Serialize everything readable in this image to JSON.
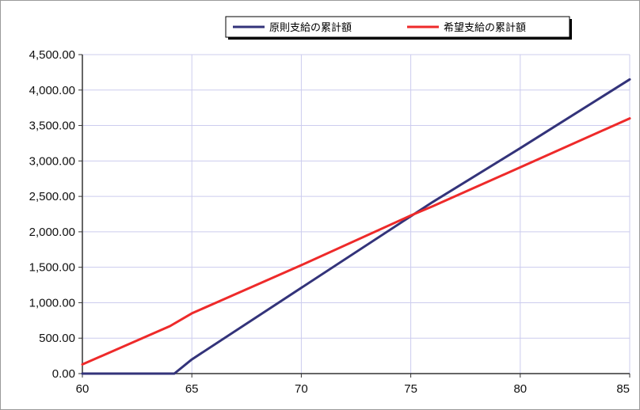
{
  "chart_data": {
    "type": "line",
    "x": [
      60,
      64.2,
      65,
      75,
      76,
      80,
      85
    ],
    "xlim": [
      60,
      85
    ],
    "ylim": [
      0,
      4500
    ],
    "x_ticks": [
      60,
      65,
      70,
      75,
      80,
      85
    ],
    "x_tick_labels": [
      "60",
      "65",
      "70",
      "75",
      "80",
      "85"
    ],
    "y_ticks": [
      0,
      500,
      1000,
      1500,
      2000,
      2500,
      3000,
      3500,
      4000,
      4500
    ],
    "y_tick_labels": [
      "0.00",
      "500.00",
      "1,000.00",
      "1,500.00",
      "2,000.00",
      "2,500.00",
      "3,000.00",
      "3,500.00",
      "4,000.00",
      "4,500.00"
    ],
    "grid": true,
    "legend_position": "top-right",
    "series": [
      {
        "name": "原則支給の累計額",
        "color": "#33337a",
        "points": [
          [
            60,
            0
          ],
          [
            64.2,
            0
          ],
          [
            65,
            200
          ],
          [
            75,
            2220
          ],
          [
            76,
            2420
          ],
          [
            80,
            3180
          ],
          [
            85,
            4150
          ]
        ]
      },
      {
        "name": "希望支給の累計額",
        "color": "#ee2a2a",
        "points": [
          [
            60,
            130
          ],
          [
            64,
            670
          ],
          [
            65,
            850
          ],
          [
            70,
            1530
          ],
          [
            75,
            2230
          ],
          [
            76,
            2360
          ],
          [
            80,
            2910
          ],
          [
            85,
            3600
          ]
        ]
      }
    ]
  }
}
